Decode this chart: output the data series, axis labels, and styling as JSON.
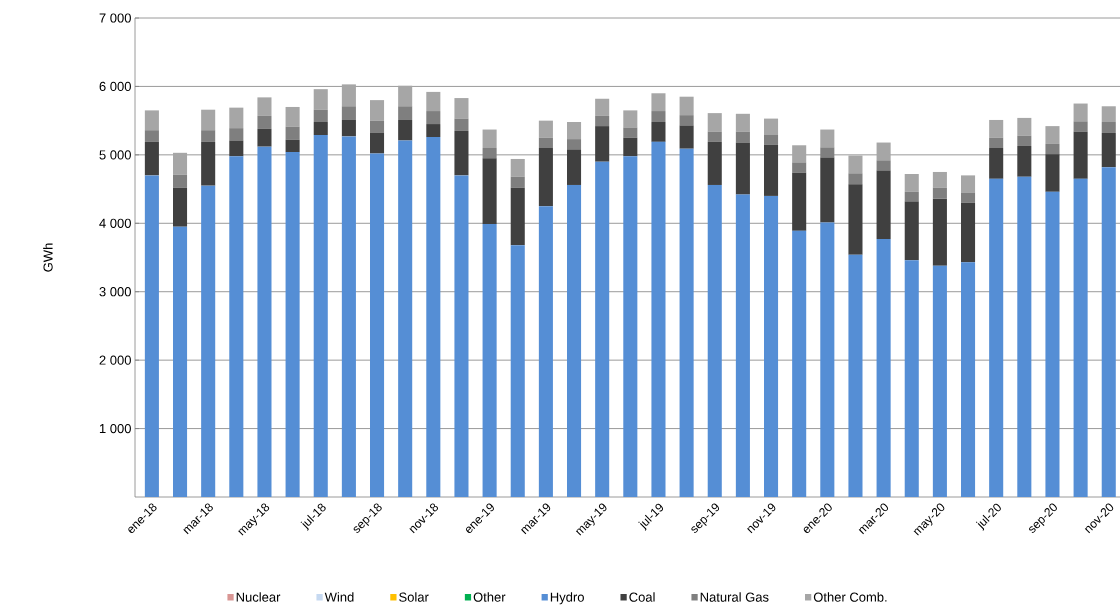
{
  "chart_data": {
    "type": "bar",
    "stacked": true,
    "ylabel": "GWh",
    "categories": [
      "ene-18",
      null,
      "mar-18",
      null,
      "may-18",
      null,
      "jul-18",
      null,
      "sep-18",
      null,
      "nov-18",
      null,
      "ene-19",
      null,
      "mar-19",
      null,
      "may-19",
      null,
      "jul-19",
      null,
      "sep-19",
      null,
      "nov-19",
      null,
      "ene-20",
      null,
      "mar-20",
      null,
      "may-20",
      null,
      "jul-20",
      null,
      "sep-20",
      null,
      "nov-20"
    ],
    "series": [
      {
        "name": "Nuclear",
        "color": "#d99694",
        "values": [
          0,
          0,
          0,
          0,
          0,
          0,
          0,
          0,
          0,
          0,
          0,
          0,
          0,
          0,
          0,
          0,
          0,
          0,
          0,
          0,
          0,
          0,
          0,
          0,
          0,
          0,
          0,
          0,
          0,
          0,
          0,
          0,
          0,
          0,
          0
        ]
      },
      {
        "name": "Wind",
        "color": "#c6d9f1",
        "values": [
          0,
          0,
          0,
          0,
          0,
          0,
          0,
          0,
          0,
          0,
          0,
          0,
          0,
          0,
          0,
          0,
          0,
          0,
          0,
          0,
          0,
          0,
          0,
          0,
          0,
          0,
          0,
          0,
          0,
          0,
          0,
          0,
          0,
          0,
          0
        ]
      },
      {
        "name": "Solar",
        "color": "#ffc000",
        "values": [
          0,
          0,
          0,
          0,
          0,
          0,
          0,
          0,
          0,
          0,
          0,
          0,
          0,
          0,
          0,
          0,
          0,
          0,
          0,
          0,
          0,
          0,
          0,
          0,
          0,
          0,
          0,
          0,
          0,
          0,
          0,
          0,
          0,
          0,
          0
        ]
      },
      {
        "name": "Other",
        "color": "#00b050",
        "values": [
          0,
          0,
          0,
          0,
          0,
          0,
          0,
          0,
          0,
          0,
          0,
          0,
          0,
          0,
          0,
          0,
          0,
          0,
          0,
          0,
          0,
          0,
          0,
          0,
          0,
          0,
          0,
          0,
          0,
          0,
          0,
          0,
          0,
          0,
          0
        ]
      },
      {
        "name": "Hydro",
        "color": "#558ed5",
        "values": [
          4700,
          3950,
          4550,
          4980,
          5120,
          5040,
          5290,
          5270,
          5020,
          5210,
          5260,
          4700,
          3990,
          3680,
          4250,
          4560,
          4900,
          4980,
          5190,
          5090,
          4560,
          4420,
          4400,
          3890,
          4010,
          3540,
          3770,
          3460,
          3380,
          3430,
          4650,
          4680,
          4460,
          4650,
          4820
        ]
      },
      {
        "name": "Coal",
        "color": "#404040",
        "values": [
          490,
          570,
          640,
          230,
          260,
          180,
          190,
          240,
          300,
          300,
          190,
          650,
          960,
          840,
          850,
          520,
          520,
          270,
          290,
          340,
          630,
          760,
          750,
          850,
          950,
          1030,
          1000,
          860,
          980,
          870,
          450,
          450,
          550,
          690,
          500
        ]
      },
      {
        "name": "Natural Gas",
        "color": "#7f7f7f",
        "values": [
          170,
          190,
          170,
          180,
          190,
          190,
          180,
          200,
          180,
          200,
          190,
          180,
          150,
          160,
          150,
          150,
          150,
          150,
          160,
          150,
          150,
          160,
          140,
          150,
          150,
          160,
          150,
          140,
          160,
          150,
          150,
          150,
          150,
          150,
          160
        ]
      },
      {
        "name": "Other Comb.",
        "color": "#a6a6a6",
        "values": [
          290,
          320,
          300,
          300,
          270,
          290,
          300,
          320,
          300,
          300,
          280,
          300,
          270,
          260,
          250,
          250,
          250,
          250,
          260,
          270,
          270,
          260,
          240,
          250,
          260,
          260,
          260,
          260,
          230,
          250,
          260,
          260,
          260,
          260,
          230
        ]
      }
    ],
    "ylim": [
      0,
      7000
    ],
    "yticks": [
      {
        "value": 1000,
        "label": "1 000"
      },
      {
        "value": 2000,
        "label": "2 000"
      },
      {
        "value": 3000,
        "label": "3 000"
      },
      {
        "value": 4000,
        "label": "4 000"
      },
      {
        "value": 5000,
        "label": "5 000"
      },
      {
        "value": 6000,
        "label": "6 000"
      },
      {
        "value": 7000,
        "label": "7 000"
      }
    ],
    "grid": "y",
    "legend": "bottom"
  }
}
